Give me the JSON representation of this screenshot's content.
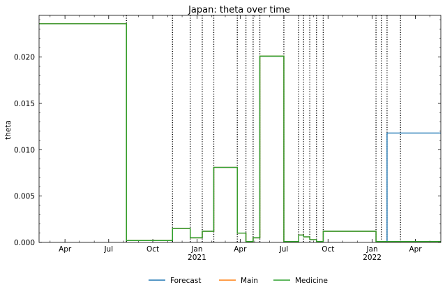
{
  "chart_data": {
    "type": "line",
    "title": "Japan: theta over time",
    "xlabel": "",
    "ylabel": "theta",
    "x_range": [
      "2020-02-07",
      "2022-05-24"
    ],
    "ylim": [
      0,
      0.0245
    ],
    "y_ticks": [
      0.0,
      0.005,
      0.01,
      0.015,
      0.02
    ],
    "y_tick_labels": [
      "0.000",
      "0.005",
      "0.010",
      "0.015",
      "0.020"
    ],
    "x_ticks": [
      {
        "date": "2020-04-01",
        "label": "Apr",
        "year": ""
      },
      {
        "date": "2020-07-01",
        "label": "Jul",
        "year": ""
      },
      {
        "date": "2020-10-01",
        "label": "Oct",
        "year": ""
      },
      {
        "date": "2021-01-01",
        "label": "Jan",
        "year": "2021"
      },
      {
        "date": "2021-04-01",
        "label": "Apr",
        "year": ""
      },
      {
        "date": "2021-07-01",
        "label": "Jul",
        "year": ""
      },
      {
        "date": "2021-10-01",
        "label": "Oct",
        "year": ""
      },
      {
        "date": "2022-01-01",
        "label": "Jan",
        "year": "2022"
      },
      {
        "date": "2022-04-01",
        "label": "Apr",
        "year": ""
      }
    ],
    "grid": false,
    "legend_position": "bottom-center",
    "change_points": [
      "2020-08-07",
      "2020-11-11",
      "2020-12-18",
      "2021-01-12",
      "2021-02-05",
      "2021-03-26",
      "2021-04-13",
      "2021-04-28",
      "2021-05-12",
      "2021-07-01",
      "2021-08-01",
      "2021-08-11",
      "2021-08-24",
      "2021-09-07",
      "2021-09-21",
      "2022-01-09",
      "2022-01-20",
      "2022-02-01",
      "2022-03-01"
    ],
    "series": [
      {
        "name": "Forecast",
        "color": "#1f77b4",
        "steps": [
          [
            "2020-02-07",
            0.0236
          ],
          [
            "2020-08-07",
            0.0002
          ],
          [
            "2020-11-11",
            0.0015
          ],
          [
            "2020-12-18",
            0.0005
          ],
          [
            "2021-01-12",
            0.0012
          ],
          [
            "2021-02-05",
            0.0081
          ],
          [
            "2021-03-26",
            0.001
          ],
          [
            "2021-04-13",
            0.0001
          ],
          [
            "2021-04-28",
            0.0005
          ],
          [
            "2021-05-12",
            0.0201
          ],
          [
            "2021-07-01",
            0.0001
          ],
          [
            "2021-08-01",
            0.0008
          ],
          [
            "2021-08-11",
            0.0006
          ],
          [
            "2021-08-24",
            0.0003
          ],
          [
            "2021-09-07",
            0.0001
          ],
          [
            "2021-09-21",
            0.0012
          ],
          [
            "2022-01-09",
            0.0001
          ],
          [
            "2022-01-20",
            0.0001
          ],
          [
            "2022-02-01",
            0.0118
          ]
        ],
        "end": "2022-05-24"
      },
      {
        "name": "Main",
        "color": "#ff7f0e",
        "steps": [
          [
            "2020-02-07",
            0.0236
          ],
          [
            "2020-08-07",
            0.0002
          ],
          [
            "2020-11-11",
            0.0015
          ],
          [
            "2020-12-18",
            0.0005
          ],
          [
            "2021-01-12",
            0.0012
          ],
          [
            "2021-02-05",
            0.0081
          ],
          [
            "2021-03-26",
            0.001
          ],
          [
            "2021-04-13",
            0.0001
          ],
          [
            "2021-04-28",
            0.0005
          ],
          [
            "2021-05-12",
            0.0201
          ],
          [
            "2021-07-01",
            0.0001
          ],
          [
            "2021-08-01",
            0.0008
          ],
          [
            "2021-08-11",
            0.0006
          ],
          [
            "2021-08-24",
            0.0003
          ],
          [
            "2021-09-07",
            0.0001
          ],
          [
            "2021-09-21",
            0.0012
          ],
          [
            "2022-01-09",
            0.0001
          ],
          [
            "2022-03-01",
            0.0001
          ]
        ],
        "end": "2022-05-24"
      },
      {
        "name": "Medicine",
        "color": "#2ca02c",
        "steps": [
          [
            "2020-02-07",
            0.0236
          ],
          [
            "2020-08-07",
            0.0002
          ],
          [
            "2020-11-11",
            0.0015
          ],
          [
            "2020-12-18",
            0.0005
          ],
          [
            "2021-01-12",
            0.0012
          ],
          [
            "2021-02-05",
            0.0081
          ],
          [
            "2021-03-26",
            0.001
          ],
          [
            "2021-04-13",
            0.0001
          ],
          [
            "2021-04-28",
            0.0005
          ],
          [
            "2021-05-12",
            0.0201
          ],
          [
            "2021-07-01",
            0.0001
          ],
          [
            "2021-08-01",
            0.0008
          ],
          [
            "2021-08-11",
            0.0006
          ],
          [
            "2021-08-24",
            0.0003
          ],
          [
            "2021-09-07",
            0.0001
          ],
          [
            "2021-09-21",
            0.0012
          ],
          [
            "2022-01-09",
            0.0001
          ],
          [
            "2022-03-01",
            0.0001
          ]
        ],
        "end": "2022-05-24"
      }
    ]
  }
}
